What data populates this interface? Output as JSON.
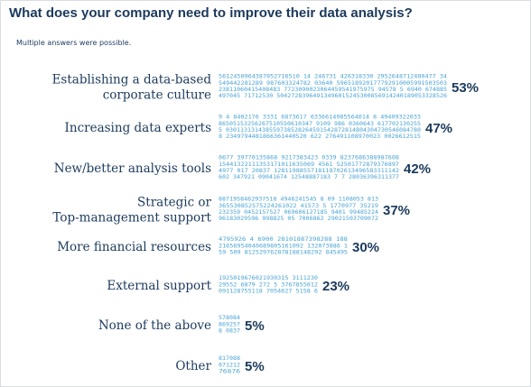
{
  "header": {
    "title": "What does your company need to improve their data analysis?",
    "subtitle": "Multiple answers were possible."
  },
  "colors": {
    "text": "#1b3a5c",
    "bar_digits": "#4aa3d6",
    "border": "#d9dde3"
  },
  "chart_data": {
    "type": "bar",
    "orientation": "horizontal",
    "title": "What does your company need to improve their data analysis?",
    "subtitle": "Multiple answers were possible.",
    "categories": [
      [
        "Establishing a data-based",
        "corporate culture"
      ],
      [
        "Increasing data experts"
      ],
      [
        "New/better analysis tools"
      ],
      [
        "Strategic or",
        "Top-management support"
      ],
      [
        "More financial resources"
      ],
      [
        "External support"
      ],
      [
        "None of the above"
      ],
      [
        "Other"
      ]
    ],
    "values": [
      53,
      47,
      42,
      37,
      30,
      23,
      5,
      5
    ],
    "value_labels": [
      "53%",
      "47%",
      "42%",
      "37%",
      "30%",
      "23%",
      "5%",
      "5%"
    ],
    "unit": "%",
    "bar_style": "made of small digit characters"
  }
}
